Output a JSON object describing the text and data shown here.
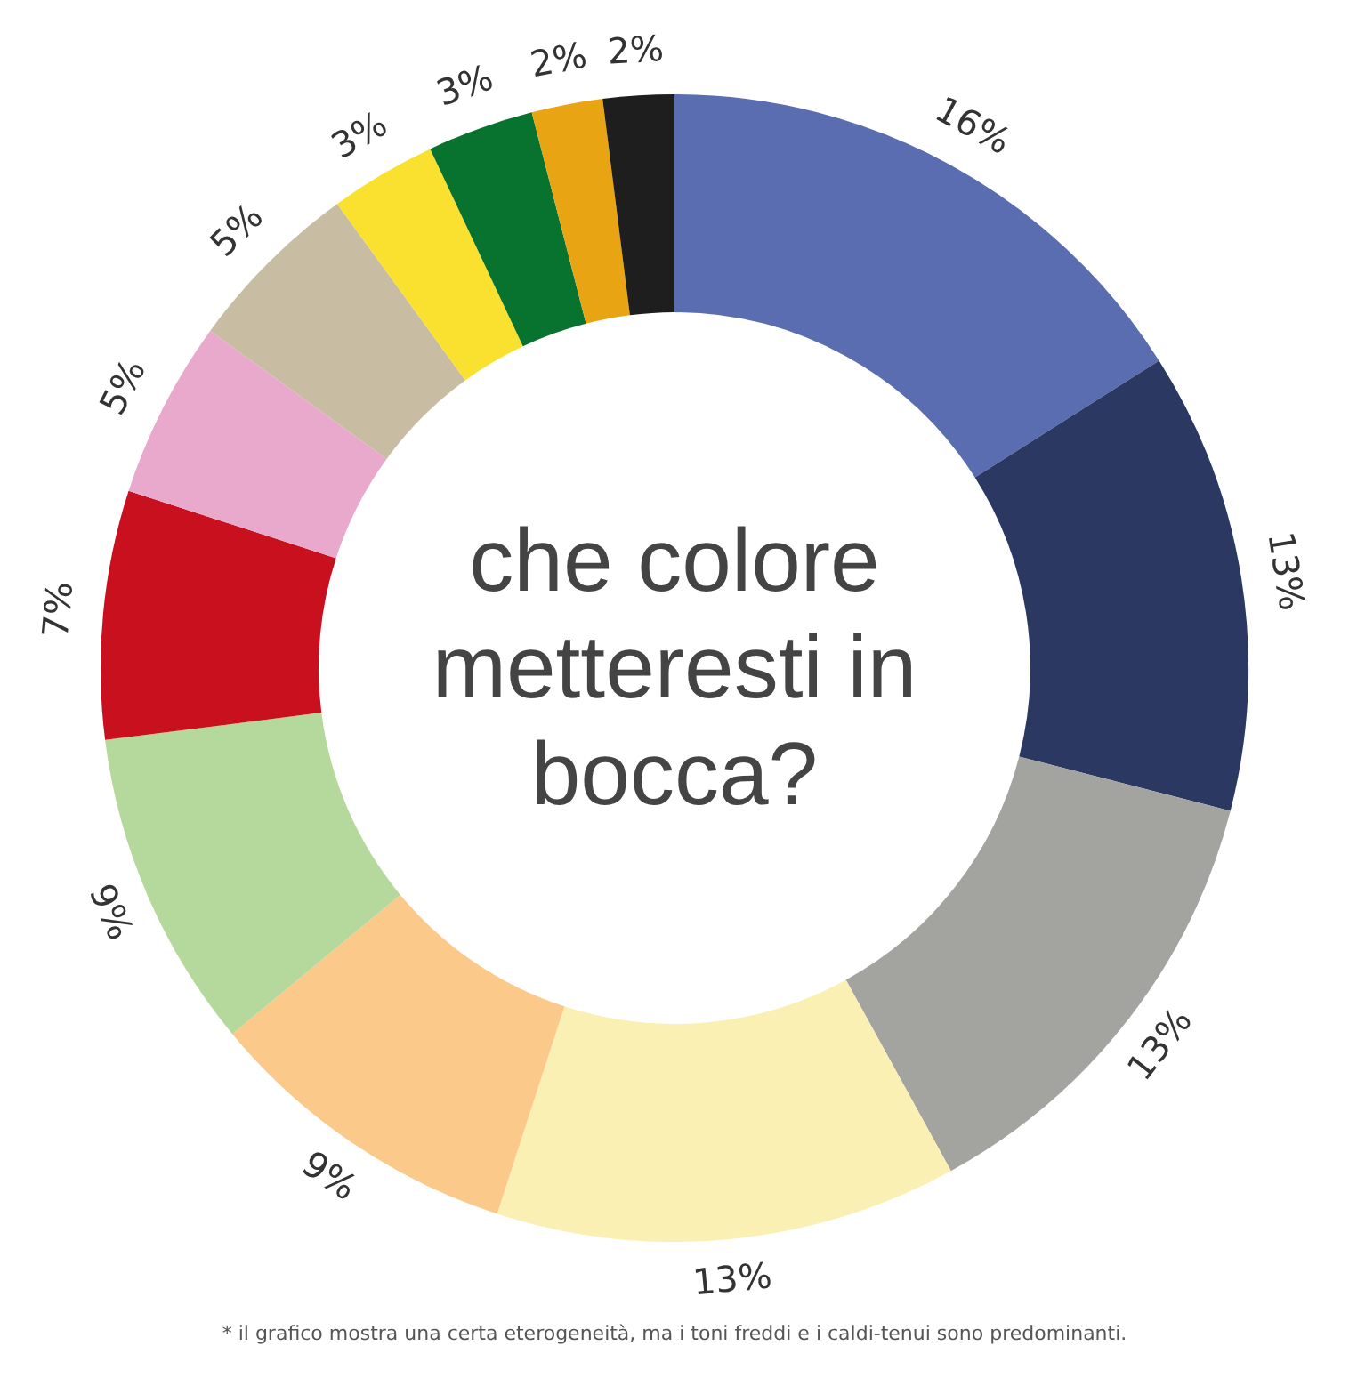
{
  "chart_data": {
    "type": "donut",
    "title": "che colore metteresti in bocca?",
    "categories": [
      null,
      null,
      null,
      null,
      null,
      null,
      null,
      null,
      null,
      null,
      null,
      null,
      null
    ],
    "values": [
      16,
      13,
      13,
      13,
      9,
      9,
      7,
      5,
      5,
      3,
      3,
      2,
      2
    ],
    "colors": [
      "#5a6db0",
      "#2b3862",
      "#a3a3a0",
      "#faf0b4",
      "#fbc98a",
      "#b5d89c",
      "#c8101e",
      "#e9a9cc",
      "#c8bca2",
      "#fbe12f",
      "#08732e",
      "#e9a414",
      "#1e1e1e"
    ],
    "value_labels": [
      "16%",
      "13%",
      "13%",
      "13%",
      "9%",
      "9%",
      "7%",
      "5%",
      "5%",
      "3%",
      "3%",
      "2%",
      "2%"
    ],
    "legend": false,
    "annotations": [
      "* il grafico mostra una certa eterogeneità, ma i toni freddi e i caldi-tenui sono predominanti."
    ]
  }
}
